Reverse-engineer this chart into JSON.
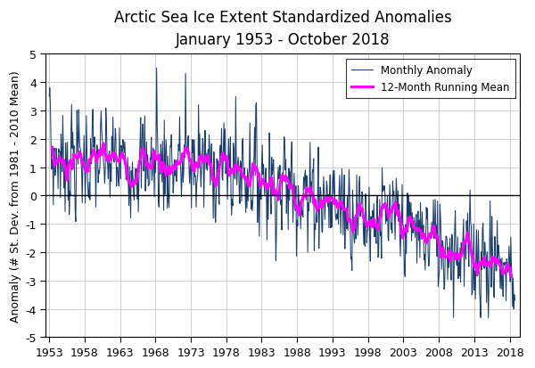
{
  "title_line1": "Arctic Sea Ice Extent Standardized Anomalies",
  "title_line2": "January 1953 - October 2018",
  "ylabel": "Anomaly (# St. Dev. from 1981 - 2010 Mean)",
  "xlabel": "",
  "xlim": [
    1952.5,
    2019.5
  ],
  "ylim": [
    -5,
    5
  ],
  "yticks": [
    -5,
    -4,
    -3,
    -2,
    -1,
    0,
    1,
    2,
    3,
    4,
    5
  ],
  "xticks": [
    1953,
    1958,
    1963,
    1968,
    1973,
    1978,
    1983,
    1988,
    1993,
    1998,
    2003,
    2008,
    2013,
    2018
  ],
  "monthly_color": "#1a3f6f",
  "running_mean_color": "#ff00ff",
  "running_mean_linewidth": 2.2,
  "monthly_linewidth": 0.75,
  "legend_monthly": "Monthly Anomaly",
  "legend_running": "12-Month Running Mean",
  "background_color": "#ffffff",
  "grid_color": "#c8c8c8",
  "title_fontsize": 12,
  "axis_label_fontsize": 9,
  "tick_fontsize": 9
}
